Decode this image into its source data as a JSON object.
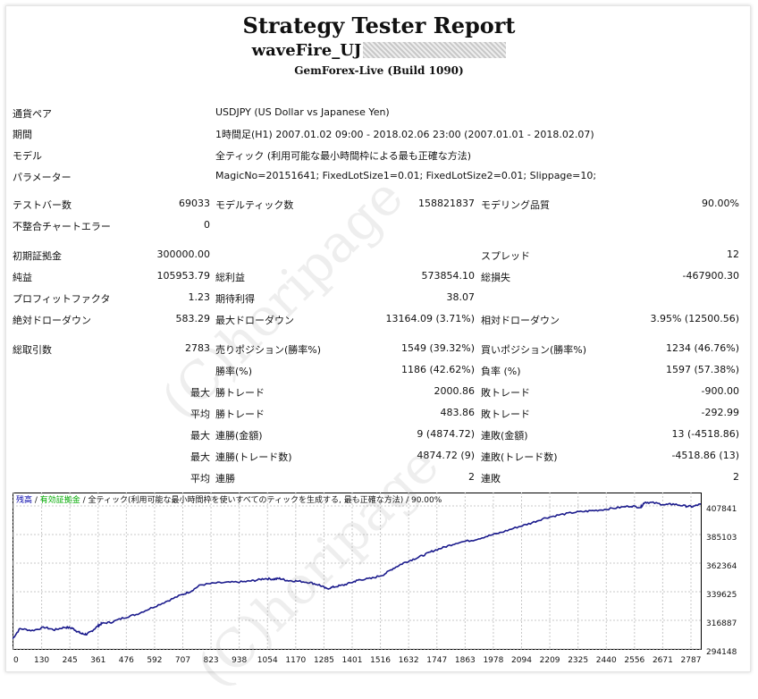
{
  "header": {
    "title": "Strategy Tester Report",
    "ea_name": "waveFire_UJ",
    "server": "GemForex-Live (Build 1090)"
  },
  "settings": [
    {
      "label": "通貨ペア",
      "value": "USDJPY (US Dollar vs Japanese Yen)"
    },
    {
      "label": "期間",
      "value": "1時間足(H1) 2007.01.02 09:00 - 2018.02.06 23:00 (2007.01.01 - 2018.02.07)"
    },
    {
      "label": "モデル",
      "value": "全ティック (利用可能な最小時間枠による最も正確な方法)"
    },
    {
      "label": "パラメーター",
      "value": "MagicNo=20151641; FixedLotSize1=0.01; FixedLotSize2=0.01; Slippage=10;"
    }
  ],
  "stats": {
    "bars_label": "テストバー数",
    "bars": "69033",
    "ticks_label": "モデルティック数",
    "ticks": "158821837",
    "quality_label": "モデリング品質",
    "quality": "90.00%",
    "mismatch_label": "不整合チャートエラー",
    "mismatch": "0",
    "deposit_label": "初期証拠金",
    "deposit": "300000.00",
    "spread_label": "スプレッド",
    "spread": "12",
    "net_label": "純益",
    "net": "105953.79",
    "gross_profit_label": "総利益",
    "gross_profit": "573854.10",
    "gross_loss_label": "総損失",
    "gross_loss": "-467900.30",
    "pf_label": "プロフィットファクタ",
    "pf": "1.23",
    "payoff_label": "期待利得",
    "payoff": "38.07",
    "abs_dd_label": "絶対ドローダウン",
    "abs_dd": "583.29",
    "max_dd_label": "最大ドローダウン",
    "max_dd": "13164.09 (3.71%)",
    "rel_dd_label": "相対ドローダウン",
    "rel_dd": "3.95% (12500.56)",
    "total_trades_label": "総取引数",
    "total_trades": "2783",
    "short_label": "売りポジション(勝率%)",
    "short": "1549 (39.32%)",
    "long_label": "買いポジション(勝率%)",
    "long": "1234 (46.76%)",
    "win_rate_label": "勝率(%)",
    "win_rate": "1186 (42.62%)",
    "loss_rate_label": "負率 (%)",
    "loss_rate": "1597 (57.38%)",
    "max_prefix": "最大",
    "avg_prefix": "平均",
    "largest_win_label": "勝トレード",
    "largest_win": "2000.86",
    "largest_loss_label": "敗トレード",
    "largest_loss": "-900.00",
    "avg_win_label": "勝トレード",
    "avg_win": "483.86",
    "avg_loss_label": "敗トレード",
    "avg_loss": "-292.99",
    "max_consec_win_money_label": "連勝(金額)",
    "max_consec_win_money": "9 (4874.72)",
    "max_consec_loss_money_label": "連敗(金額)",
    "max_consec_loss_money": "13 (-4518.86)",
    "max_consec_win_count_label": "連勝(トレード数)",
    "max_consec_win_count": "4874.72 (9)",
    "max_consec_loss_count_label": "連敗(トレード数)",
    "max_consec_loss_count": "-4518.86 (13)",
    "avg_consec_win_label": "連勝",
    "avg_consec_win": "2",
    "avg_consec_loss_label": "連敗",
    "avg_consec_loss": "2"
  },
  "watermark": "(C)horipage",
  "chart_data": {
    "type": "line",
    "legend": [
      {
        "text": "残高",
        "color": "#0000aa"
      },
      {
        "text": " / ",
        "color": "#111111"
      },
      {
        "text": "有効証拠金",
        "color": "#00aa00"
      },
      {
        "text": " / 全ティック(利用可能な最小時間枠を使いすべてのティックを生成する, 最も正確な方法) / 90.00%",
        "color": "#111111"
      }
    ],
    "x_ticks": [
      "0",
      "130",
      "245",
      "361",
      "476",
      "592",
      "707",
      "823",
      "938",
      "1054",
      "1170",
      "1285",
      "1401",
      "1516",
      "1632",
      "1747",
      "1863",
      "1978",
      "2094",
      "2209",
      "2325",
      "2440",
      "2556",
      "2671",
      "2787"
    ],
    "y_ticks": [
      "407841",
      "385103",
      "362364",
      "339625",
      "316887",
      "294148"
    ],
    "xlim": [
      0,
      2783
    ],
    "ylim": [
      294148,
      416000
    ],
    "series": [
      {
        "color": "#1a1a8c",
        "x": [
          0,
          30,
          80,
          130,
          170,
          210,
          240,
          260,
          280,
          300,
          320,
          345,
          361,
          400,
          450,
          500,
          560,
          620,
          680,
          720,
          760,
          823,
          880,
          938,
          980,
          1020,
          1054,
          1080,
          1110,
          1150,
          1200,
          1240,
          1270,
          1300,
          1340,
          1380,
          1401,
          1450,
          1500,
          1540,
          1580,
          1620,
          1660,
          1700,
          1747,
          1800,
          1863,
          1920,
          1978,
          2040,
          2094,
          2150,
          2209,
          2270,
          2325,
          2380,
          2440,
          2500,
          2540,
          2556,
          2590,
          2640,
          2671,
          2720,
          2750,
          2783
        ],
        "y": [
          302000,
          310000,
          308500,
          311000,
          309000,
          311000,
          310500,
          308000,
          306000,
          305500,
          308000,
          312000,
          314000,
          315000,
          318500,
          321000,
          326000,
          331000,
          336000,
          339000,
          344000,
          345500,
          346000,
          346500,
          347500,
          349000,
          348500,
          349000,
          347500,
          347000,
          346000,
          344000,
          341000,
          342500,
          344000,
          346500,
          348000,
          349000,
          352000,
          357000,
          361000,
          364000,
          367000,
          370500,
          373500,
          377000,
          379000,
          382000,
          385000,
          389000,
          392000,
          396000,
          398500,
          400500,
          401500,
          402500,
          404000,
          405500,
          404500,
          408500,
          408000,
          406500,
          407000,
          405500,
          405000,
          407000
        ]
      }
    ]
  }
}
